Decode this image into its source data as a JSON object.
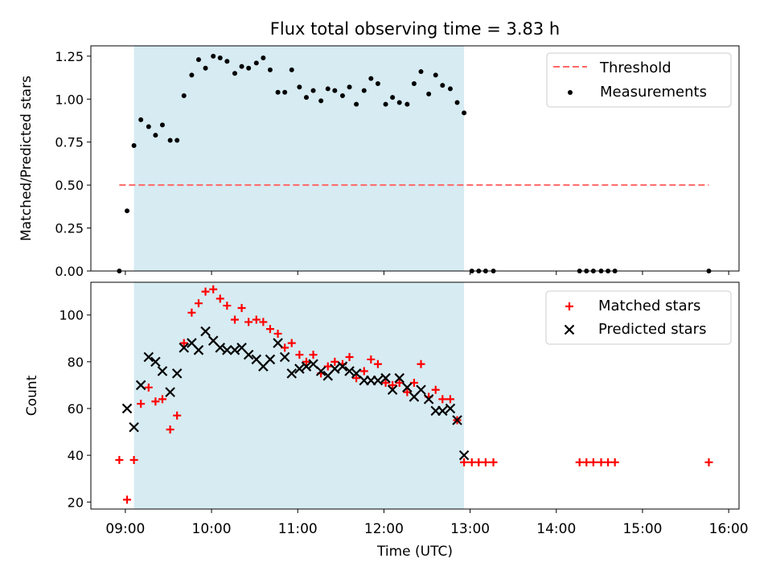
{
  "title": "Flux total observing time = 3.83 h",
  "colors": {
    "window": "#add8e6",
    "threshold": "#ff6666",
    "measurement": "#000000",
    "matched": "#ff0000",
    "predicted": "#000000"
  },
  "chart_data": [
    {
      "type": "scatter",
      "ylabel": "Matched/Predicted stars",
      "ylim": [
        0,
        1.31
      ],
      "yticks": [
        "0.00",
        "0.25",
        "0.50",
        "0.75",
        "1.00",
        "1.25"
      ],
      "ytick_values": [
        0,
        0.25,
        0.5,
        0.75,
        1.0,
        1.25
      ],
      "xlim_hours": [
        8.6,
        16.12
      ],
      "observing_window_hours": [
        9.1,
        12.93
      ],
      "legend_position": "upper right",
      "threshold": {
        "name": "Threshold",
        "y": 0.5,
        "x_range_hours": [
          8.93,
          15.77
        ]
      },
      "measurements": {
        "name": "Measurements",
        "points": [
          [
            8.93,
            0.0
          ],
          [
            9.02,
            0.35
          ],
          [
            9.1,
            0.73
          ],
          [
            9.18,
            0.88
          ],
          [
            9.27,
            0.84
          ],
          [
            9.35,
            0.79
          ],
          [
            9.43,
            0.85
          ],
          [
            9.52,
            0.76
          ],
          [
            9.6,
            0.76
          ],
          [
            9.68,
            1.02
          ],
          [
            9.77,
            1.14
          ],
          [
            9.85,
            1.23
          ],
          [
            9.93,
            1.18
          ],
          [
            10.02,
            1.25
          ],
          [
            10.1,
            1.24
          ],
          [
            10.18,
            1.22
          ],
          [
            10.27,
            1.15
          ],
          [
            10.35,
            1.19
          ],
          [
            10.43,
            1.18
          ],
          [
            10.52,
            1.21
          ],
          [
            10.6,
            1.24
          ],
          [
            10.68,
            1.17
          ],
          [
            10.77,
            1.04
          ],
          [
            10.85,
            1.04
          ],
          [
            10.93,
            1.17
          ],
          [
            11.02,
            1.07
          ],
          [
            11.1,
            1.01
          ],
          [
            11.18,
            1.05
          ],
          [
            11.27,
            0.99
          ],
          [
            11.35,
            1.06
          ],
          [
            11.43,
            1.05
          ],
          [
            11.52,
            1.02
          ],
          [
            11.6,
            1.07
          ],
          [
            11.68,
            0.97
          ],
          [
            11.77,
            1.05
          ],
          [
            11.85,
            1.12
          ],
          [
            11.93,
            1.09
          ],
          [
            12.02,
            0.97
          ],
          [
            12.1,
            1.01
          ],
          [
            12.18,
            0.98
          ],
          [
            12.27,
            0.97
          ],
          [
            12.35,
            1.09
          ],
          [
            12.43,
            1.16
          ],
          [
            12.52,
            1.03
          ],
          [
            12.6,
            1.14
          ],
          [
            12.68,
            1.08
          ],
          [
            12.77,
            1.06
          ],
          [
            12.85,
            0.98
          ],
          [
            12.93,
            0.92
          ],
          [
            13.02,
            0.0
          ],
          [
            13.1,
            0.0
          ],
          [
            13.18,
            0.0
          ],
          [
            13.27,
            0.0
          ],
          [
            14.27,
            0.0
          ],
          [
            14.35,
            0.0
          ],
          [
            14.43,
            0.0
          ],
          [
            14.52,
            0.0
          ],
          [
            14.6,
            0.0
          ],
          [
            14.68,
            0.0
          ],
          [
            15.77,
            0.0
          ]
        ]
      }
    },
    {
      "type": "scatter",
      "xlabel": "Time (UTC)",
      "ylabel": "Count",
      "ylim": [
        17,
        114
      ],
      "yticks": [
        "20",
        "40",
        "60",
        "80",
        "100"
      ],
      "ytick_values": [
        20,
        40,
        60,
        80,
        100
      ],
      "xlim_hours": [
        8.6,
        16.12
      ],
      "xticks": [
        "09:00",
        "10:00",
        "11:00",
        "12:00",
        "13:00",
        "14:00",
        "15:00",
        "16:00"
      ],
      "xtick_values": [
        9,
        10,
        11,
        12,
        13,
        14,
        15,
        16
      ],
      "observing_window_hours": [
        9.1,
        12.93
      ],
      "legend_position": "upper right",
      "series": [
        {
          "name": "Matched stars",
          "marker": "plus",
          "points": [
            [
              8.93,
              38
            ],
            [
              9.02,
              21
            ],
            [
              9.1,
              38
            ],
            [
              9.18,
              62
            ],
            [
              9.27,
              69
            ],
            [
              9.35,
              63
            ],
            [
              9.43,
              64
            ],
            [
              9.52,
              51
            ],
            [
              9.6,
              57
            ],
            [
              9.68,
              88
            ],
            [
              9.77,
              101
            ],
            [
              9.85,
              105
            ],
            [
              9.93,
              110
            ],
            [
              10.02,
              111
            ],
            [
              10.1,
              107
            ],
            [
              10.18,
              104
            ],
            [
              10.27,
              98
            ],
            [
              10.35,
              103
            ],
            [
              10.43,
              97
            ],
            [
              10.52,
              98
            ],
            [
              10.6,
              97
            ],
            [
              10.68,
              94
            ],
            [
              10.77,
              92
            ],
            [
              10.85,
              86
            ],
            [
              10.93,
              88
            ],
            [
              11.02,
              83
            ],
            [
              11.1,
              80
            ],
            [
              11.18,
              83
            ],
            [
              11.27,
              75
            ],
            [
              11.35,
              78
            ],
            [
              11.43,
              80
            ],
            [
              11.52,
              79
            ],
            [
              11.6,
              82
            ],
            [
              11.68,
              73
            ],
            [
              11.77,
              76
            ],
            [
              11.85,
              81
            ],
            [
              11.93,
              79
            ],
            [
              12.02,
              71
            ],
            [
              12.1,
              70
            ],
            [
              12.18,
              71
            ],
            [
              12.27,
              67
            ],
            [
              12.35,
              71
            ],
            [
              12.43,
              79
            ],
            [
              12.52,
              65
            ],
            [
              12.6,
              68
            ],
            [
              12.68,
              64
            ],
            [
              12.77,
              64
            ],
            [
              12.85,
              55
            ],
            [
              12.93,
              37
            ],
            [
              13.02,
              37
            ],
            [
              13.1,
              37
            ],
            [
              13.18,
              37
            ],
            [
              13.27,
              37
            ],
            [
              14.27,
              37
            ],
            [
              14.35,
              37
            ],
            [
              14.43,
              37
            ],
            [
              14.52,
              37
            ],
            [
              14.6,
              37
            ],
            [
              14.68,
              37
            ],
            [
              15.77,
              37
            ]
          ]
        },
        {
          "name": "Predicted stars",
          "marker": "x",
          "points": [
            [
              9.02,
              60
            ],
            [
              9.1,
              52
            ],
            [
              9.18,
              70
            ],
            [
              9.27,
              82
            ],
            [
              9.35,
              80
            ],
            [
              9.43,
              76
            ],
            [
              9.52,
              67
            ],
            [
              9.6,
              75
            ],
            [
              9.68,
              86
            ],
            [
              9.77,
              88
            ],
            [
              9.85,
              85
            ],
            [
              9.93,
              93
            ],
            [
              10.02,
              89
            ],
            [
              10.1,
              86
            ],
            [
              10.18,
              85
            ],
            [
              10.27,
              85
            ],
            [
              10.35,
              86
            ],
            [
              10.43,
              83
            ],
            [
              10.52,
              81
            ],
            [
              10.6,
              78
            ],
            [
              10.68,
              81
            ],
            [
              10.77,
              88
            ],
            [
              10.85,
              82
            ],
            [
              10.93,
              75
            ],
            [
              11.02,
              77
            ],
            [
              11.1,
              78
            ],
            [
              11.18,
              79
            ],
            [
              11.27,
              76
            ],
            [
              11.35,
              74
            ],
            [
              11.43,
              77
            ],
            [
              11.52,
              78
            ],
            [
              11.6,
              76
            ],
            [
              11.68,
              75
            ],
            [
              11.77,
              72
            ],
            [
              11.85,
              72
            ],
            [
              11.93,
              72
            ],
            [
              12.02,
              73
            ],
            [
              12.1,
              68
            ],
            [
              12.18,
              73
            ],
            [
              12.27,
              69
            ],
            [
              12.35,
              65
            ],
            [
              12.43,
              68
            ],
            [
              12.52,
              64
            ],
            [
              12.6,
              59
            ],
            [
              12.68,
              59
            ],
            [
              12.77,
              60
            ],
            [
              12.85,
              55
            ],
            [
              12.93,
              40
            ]
          ]
        }
      ]
    }
  ]
}
